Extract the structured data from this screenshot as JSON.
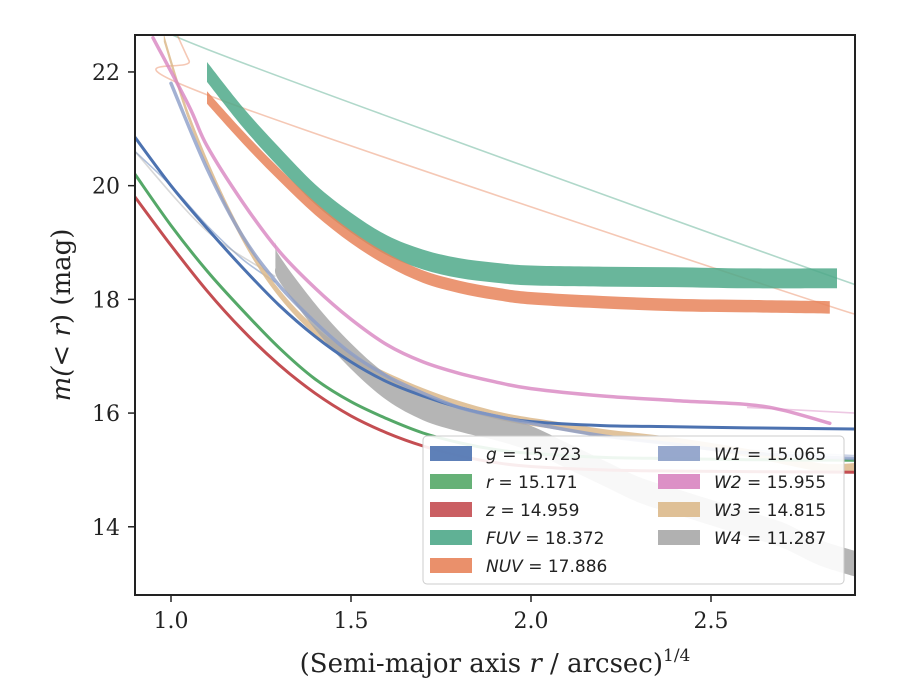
{
  "chart_data": {
    "type": "line",
    "xlabel": "(Semi-major axis r / arcsec)^1/4",
    "xlabel_parts": {
      "main": "(Semi-major axis ",
      "var": "r",
      "rest": " / arcsec)",
      "sup": "1/4"
    },
    "ylabel": "m(< r) (mag)",
    "ylabel_parts": {
      "main": "m(",
      "var": "< r",
      "rest": ") (mag)"
    },
    "xlim": [
      0.9,
      2.9
    ],
    "ylim": [
      22.65,
      12.8
    ],
    "y_inverted": true,
    "xticks": [
      1.0,
      1.5,
      2.0,
      2.5
    ],
    "xtick_labels": [
      "1.0",
      "1.5",
      "2.0",
      "2.5"
    ],
    "yticks": [
      14,
      16,
      18,
      20,
      22
    ],
    "ytick_labels": [
      "14",
      "16",
      "18",
      "20",
      "22"
    ],
    "grid": false,
    "legend_placement": "lower-right",
    "series": [
      {
        "name": "g = 15.723",
        "band": "g",
        "value": "15.723",
        "color": "#4c72b0",
        "width": 0.05,
        "x": [
          0.9,
          1.0,
          1.1,
          1.2,
          1.3,
          1.4,
          1.5,
          1.6,
          1.7,
          1.8,
          1.9,
          2.0,
          2.2,
          2.4,
          2.6,
          2.9
        ],
        "y": [
          20.85,
          20.0,
          19.25,
          18.55,
          17.9,
          17.35,
          16.9,
          16.55,
          16.3,
          16.1,
          15.95,
          15.85,
          15.78,
          15.76,
          15.74,
          15.72
        ],
        "ghost_x": [
          0.9,
          1.0,
          1.1,
          1.2,
          1.29
        ],
        "ghost_y": [
          20.6,
          20.0,
          19.3,
          18.7,
          18.3
        ]
      },
      {
        "name": "r = 15.171",
        "band": "r",
        "value": "15.171",
        "color": "#55a868",
        "width": 0.05,
        "x": [
          0.9,
          1.0,
          1.1,
          1.2,
          1.3,
          1.4,
          1.5,
          1.6,
          1.7,
          1.8,
          1.9,
          2.0,
          2.2,
          2.4,
          2.6,
          2.9
        ],
        "y": [
          20.2,
          19.3,
          18.5,
          17.8,
          17.15,
          16.6,
          16.2,
          15.9,
          15.65,
          15.48,
          15.36,
          15.29,
          15.22,
          15.2,
          15.18,
          15.17
        ]
      },
      {
        "name": "z = 14.959",
        "band": "z",
        "value": "14.959",
        "color": "#c44e52",
        "width": 0.05,
        "x": [
          0.9,
          1.0,
          1.1,
          1.2,
          1.3,
          1.4,
          1.5,
          1.6,
          1.7,
          1.8,
          1.9,
          2.0,
          2.2,
          2.4,
          2.6,
          2.9
        ],
        "y": [
          19.8,
          18.95,
          18.15,
          17.45,
          16.85,
          16.35,
          15.95,
          15.65,
          15.42,
          15.25,
          15.13,
          15.06,
          15.0,
          14.98,
          14.97,
          14.96
        ]
      },
      {
        "name": "FUV = 18.372",
        "band": "FUV",
        "value": "18.372",
        "color": "#4fa98a",
        "width": 0.35,
        "x": [
          1.1,
          1.2,
          1.3,
          1.4,
          1.5,
          1.6,
          1.7,
          1.8,
          1.9,
          2.0,
          2.2,
          2.4,
          2.6,
          2.85
        ],
        "y": [
          22.0,
          21.2,
          20.5,
          19.85,
          19.35,
          18.95,
          18.7,
          18.55,
          18.47,
          18.42,
          18.4,
          18.39,
          18.37,
          18.37
        ],
        "ghost_x": [
          1.0,
          1.05,
          1.1,
          2.85,
          2.9
        ],
        "ghost_y": [
          23.0,
          22.8,
          22.4,
          18.37,
          18.37
        ]
      },
      {
        "name": "NUV = 17.886",
        "band": "NUV",
        "value": "17.886",
        "color": "#e8845b",
        "width": 0.22,
        "x": [
          1.1,
          1.2,
          1.3,
          1.4,
          1.5,
          1.6,
          1.7,
          1.8,
          1.9,
          2.0,
          2.2,
          2.4,
          2.6,
          2.83
        ],
        "y": [
          21.55,
          20.85,
          20.2,
          19.6,
          19.1,
          18.7,
          18.4,
          18.22,
          18.1,
          18.02,
          17.95,
          17.9,
          17.88,
          17.86
        ],
        "ghost_x": [
          1.0,
          1.05,
          1.1,
          2.83,
          2.9
        ],
        "ghost_y": [
          22.9,
          22.2,
          21.6,
          17.88,
          17.88
        ]
      },
      {
        "name": "W1 = 15.065",
        "band": "W1",
        "value": "15.065",
        "color": "#8c9ec8",
        "width": 0.06,
        "x": [
          1.0,
          1.1,
          1.2,
          1.3,
          1.4,
          1.5,
          1.6,
          1.7,
          1.8,
          1.9,
          2.0,
          2.2,
          2.4,
          2.6,
          2.9
        ],
        "y": [
          21.8,
          20.3,
          19.1,
          18.25,
          17.6,
          17.05,
          16.65,
          16.35,
          16.1,
          15.95,
          15.82,
          15.6,
          15.45,
          15.3,
          15.2
        ],
        "ghost_x": [
          2.6,
          2.9
        ],
        "ghost_y": [
          15.35,
          15.25
        ]
      },
      {
        "name": "W2 = 15.955",
        "band": "W2",
        "value": "15.955",
        "color": "#d884c0",
        "width": 0.08,
        "x": [
          0.95,
          1.05,
          1.1,
          1.2,
          1.3,
          1.4,
          1.5,
          1.6,
          1.7,
          1.8,
          1.9,
          2.0,
          2.2,
          2.4,
          2.6,
          2.7,
          2.83
        ],
        "y": [
          22.6,
          21.4,
          20.7,
          19.7,
          18.85,
          18.2,
          17.65,
          17.2,
          16.9,
          16.7,
          16.55,
          16.43,
          16.3,
          16.22,
          16.15,
          16.05,
          15.82
        ],
        "ghost_x": [
          2.6,
          2.9
        ],
        "ghost_y": [
          16.1,
          16.0
        ]
      },
      {
        "name": "W3 = 14.815",
        "band": "W3",
        "value": "14.815",
        "color": "#dcb98b",
        "width": 0.14,
        "x": [
          0.98,
          1.05,
          1.15,
          1.25,
          1.35,
          1.45,
          1.55,
          1.65,
          1.75,
          1.85,
          1.95,
          2.05,
          2.2,
          2.4,
          2.6,
          2.8,
          2.9
        ],
        "y": [
          22.6,
          21.2,
          19.7,
          18.55,
          17.75,
          17.2,
          16.8,
          16.5,
          16.25,
          16.05,
          15.9,
          15.8,
          15.65,
          15.5,
          15.3,
          15.05,
          15.05
        ]
      },
      {
        "name": "W4 = 11.287",
        "band": "W4",
        "value": "11.287",
        "color": "#a8a8a8",
        "width": 0.45,
        "x": [
          1.29,
          1.3,
          1.4,
          1.5,
          1.6,
          1.7,
          1.8,
          1.9,
          2.0,
          2.1,
          2.2,
          2.3,
          2.4,
          2.5,
          2.6,
          2.7,
          2.8,
          2.9
        ],
        "y": [
          18.8,
          18.55,
          17.7,
          17.0,
          16.45,
          16.1,
          15.9,
          15.75,
          15.55,
          15.25,
          14.95,
          14.65,
          14.45,
          14.25,
          14.05,
          13.85,
          13.55,
          13.35
        ],
        "ghost_x": [
          0.9,
          1.1,
          1.29
        ],
        "ghost_y": [
          20.6,
          19.2,
          18.4
        ]
      }
    ]
  }
}
